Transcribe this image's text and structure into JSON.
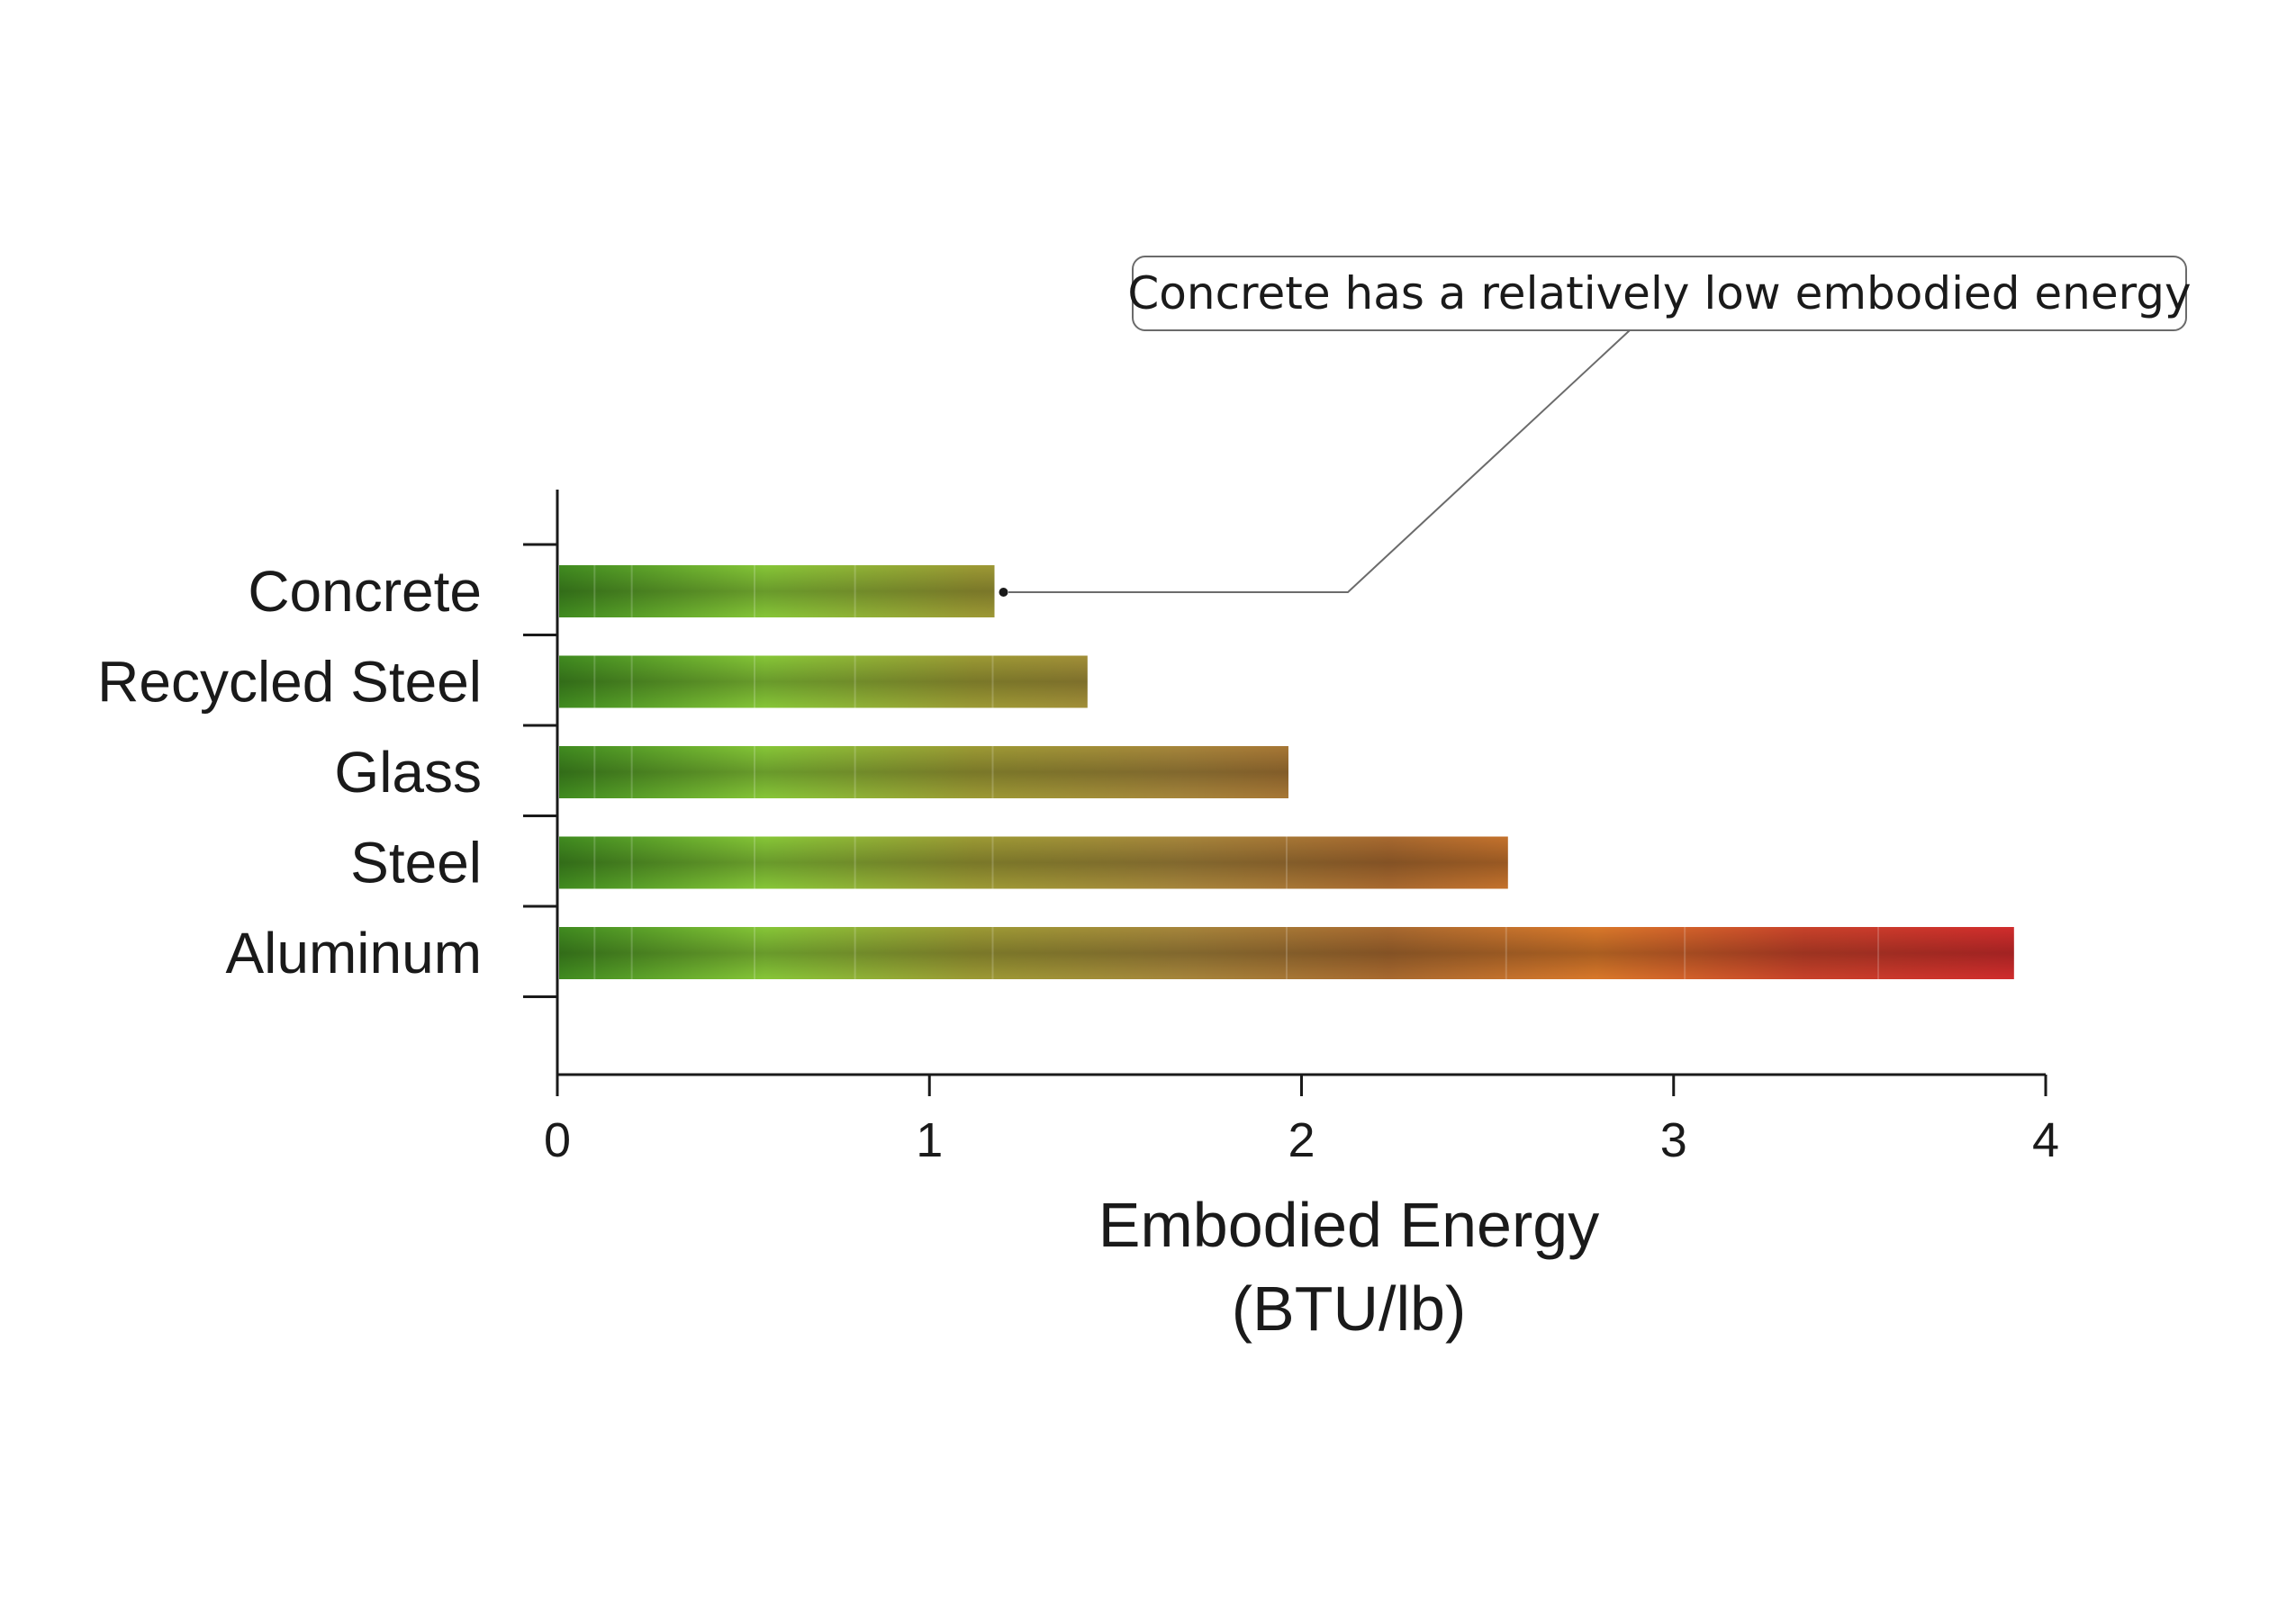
{
  "chart_data": {
    "type": "bar",
    "orientation": "horizontal",
    "categories": [
      "Concrete",
      "Recycled Steel",
      "Glass",
      "Steel",
      "Aluminum"
    ],
    "values": [
      1.17,
      1.42,
      1.96,
      2.55,
      3.91
    ],
    "xlabel": "Embodied Energy",
    "xlabel_unit": "(BTU/lb)",
    "xlim": [
      0,
      4
    ],
    "xticks": [
      "0",
      "1",
      "2",
      "3",
      "4"
    ],
    "grid": false,
    "legend": "none",
    "annotation": {
      "text": "Concrete has a relatively low embodied energy",
      "target_category": "Concrete"
    },
    "gradient_colors": [
      "#3f8a1f",
      "#86c637",
      "#9c9a34",
      "#a6853b",
      "#a8692f",
      "#d9782a",
      "#c8422a",
      "#d02c2c"
    ]
  }
}
